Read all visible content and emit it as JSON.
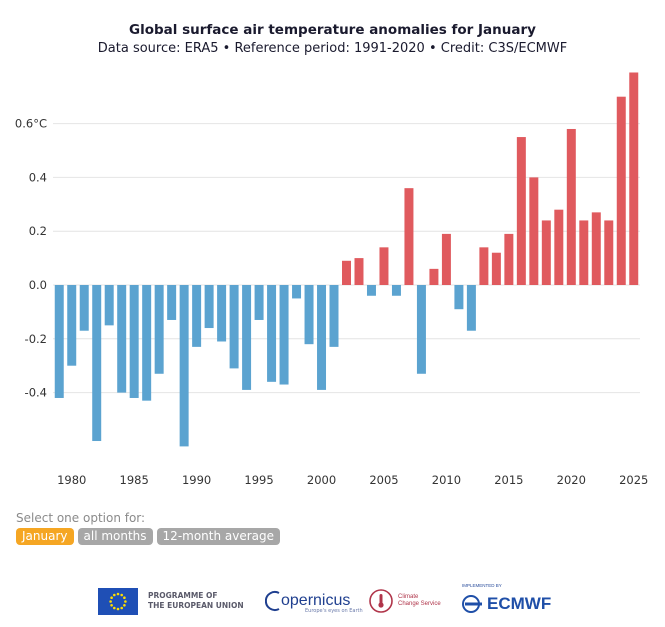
{
  "header": {
    "title": "Global surface air temperature anomalies for January",
    "subtitle": "Data source: ERA5 • Reference period: 1991-2020 • Credit: C3S/ECMWF"
  },
  "controls": {
    "label": "Select one option for:",
    "options": [
      "January",
      "all months",
      "12-month average"
    ],
    "selected": "January"
  },
  "footer": {
    "eu_text": "PROGRAMME OF\nTHE EUROPEAN UNION",
    "copernicus_name": "opernicus",
    "copernicus_sub": "Europe's eyes on Earth",
    "c3s_text": "Climate\nChange Service",
    "ecmwf_small": "IMPLEMENTED BY",
    "ecmwf_name": "ECMWF"
  },
  "colors": {
    "positive": "#e05a5e",
    "negative": "#5ba3d0",
    "active_button": "#f5a623",
    "inactive_button": "#a7a7a7"
  },
  "chart_data": {
    "type": "bar",
    "title": "Global surface air temperature anomalies for January",
    "subtitle": "Data source: ERA5 • Reference period: 1991-2020 • Credit: C3S/ECMWF",
    "xlabel": "",
    "ylabel": "",
    "ylim": [
      -0.6,
      0.78
    ],
    "yticks": [
      0.6,
      0.4,
      0.2,
      0.0,
      -0.2,
      -0.4
    ],
    "ytick_labels": [
      "0.6°C",
      "0.4",
      "0.2",
      "0.0",
      "-0.2",
      "-0.4"
    ],
    "xticks": [
      1980,
      1985,
      1990,
      1995,
      2000,
      2005,
      2010,
      2015,
      2020,
      2025
    ],
    "grid": "horizontal",
    "x": [
      1979,
      1980,
      1981,
      1982,
      1983,
      1984,
      1985,
      1986,
      1987,
      1988,
      1989,
      1990,
      1991,
      1992,
      1993,
      1994,
      1995,
      1996,
      1997,
      1998,
      1999,
      2000,
      2001,
      2002,
      2003,
      2004,
      2005,
      2006,
      2007,
      2008,
      2009,
      2010,
      2011,
      2012,
      2013,
      2014,
      2015,
      2016,
      2017,
      2018,
      2019,
      2020,
      2021,
      2022,
      2023,
      2024,
      2025
    ],
    "values": [
      -0.42,
      -0.3,
      -0.17,
      -0.58,
      -0.15,
      -0.4,
      -0.42,
      -0.43,
      -0.33,
      -0.13,
      -0.6,
      -0.23,
      -0.16,
      -0.21,
      -0.31,
      -0.39,
      -0.13,
      -0.36,
      -0.37,
      -0.05,
      -0.22,
      -0.39,
      -0.23,
      0.09,
      0.1,
      -0.04,
      0.14,
      -0.04,
      0.36,
      -0.33,
      0.06,
      0.19,
      -0.09,
      -0.17,
      0.14,
      0.12,
      0.19,
      0.55,
      0.4,
      0.24,
      0.28,
      0.58,
      0.24,
      0.27,
      0.24,
      0.7,
      0.79
    ]
  }
}
